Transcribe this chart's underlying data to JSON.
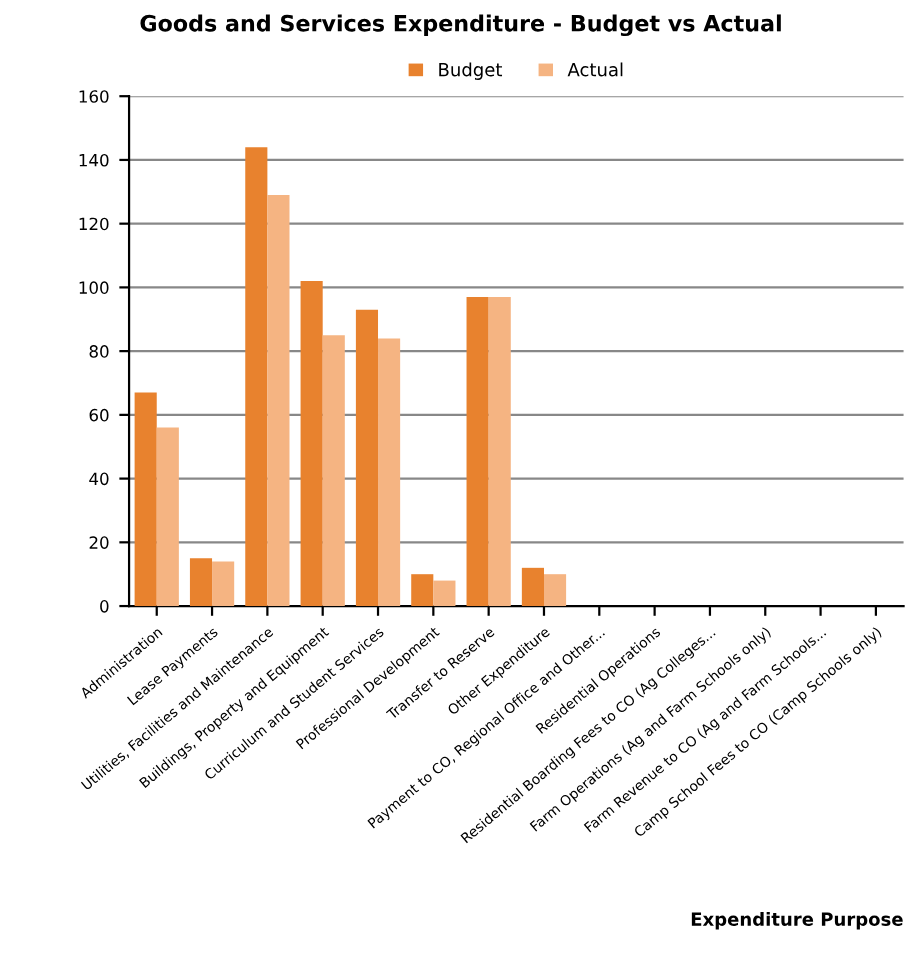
{
  "chart_data": {
    "type": "bar",
    "title": "Goods and Services Expenditure - Budget vs Actual",
    "xlabel": "Expenditure Purpose",
    "categories": [
      "Administration",
      "Lease Payments",
      "Utilities, Facilities and Maintenance",
      "Buildings, Property and Equipment",
      "Curriculum and Student Services",
      "Professional Development",
      "Transfer to Reserve",
      "Other Expenditure",
      "Payment to CO, Regional Office and Other...",
      "Residential Operations",
      "Residential Boarding Fees to CO (Ag Colleges...",
      "Farm Operations (Ag and Farm Schools only)",
      "Farm Revenue to CO (Ag and Farm Schools...",
      "Camp School Fees to CO (Camp Schools only)"
    ],
    "series": [
      {
        "name": "Budget",
        "color": "#e8822e",
        "values": [
          67,
          15,
          144,
          102,
          93,
          10,
          97,
          12,
          0,
          0,
          0,
          0,
          0,
          0
        ]
      },
      {
        "name": "Actual",
        "color": "#f5b482",
        "values": [
          56,
          14,
          129,
          85,
          84,
          8,
          97,
          10,
          0,
          0,
          0,
          0,
          0,
          0
        ]
      }
    ],
    "ylim": [
      0,
      160
    ],
    "yticks": [
      0,
      20,
      40,
      60,
      80,
      100,
      120,
      140,
      160
    ],
    "grid": "y",
    "legend": "top"
  }
}
